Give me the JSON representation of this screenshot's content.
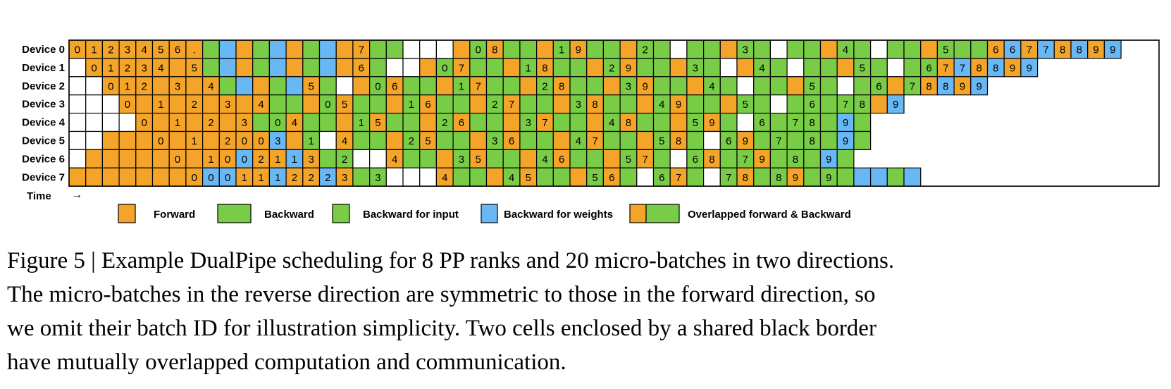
{
  "colors": {
    "forward": "#F5A42A",
    "backward": "#78CC46",
    "backward_input": "#78CC46",
    "backward_weights": "#69B8F6",
    "empty": "#FFFFFF"
  },
  "diagram": {
    "time_label": "Time",
    "time_arrow": "→",
    "rows": [
      {
        "label": "Device 0",
        "cells": "F0 F1 F2 F3 F4 F5 F6 F. B W F B W F B W F F7 B B . . . F B0 F8 B B F B1 F9 B B F B2 B . B B F B3 B . B B F B4 B . B B F B5 B B F6 W6 F7 W7 F8 W8 F9 W9"
      },
      {
        "label": "Device 1",
        "cells": ". F0 F1 F2 F3 F4 F F5 B W F B W F B W F F6 B . . F B0 F7 B B F B1 F8 B B F B2 F9 B B F B3 B . F B4 B . B B F B5 B . B B6 F7 W7 F8 W8 F9 W9"
      },
      {
        "label": "Device 2",
        "cells": ". . F0 F1 F2 F F3 F F4 B W F B W F5 B . F B0 F6 B B F B1 F7 B B F B2 F8 B B F B3 F9 B B F B4 B . B B F B5 B . B B6 F B7 F8 W8 F9 W9"
      },
      {
        "label": "Device 3",
        "cells": ". . . F0 F F1 F F2 F F3 F F4 B B F B0 F5 B B F B1 F6 B B F B2 F7 B B F B3 F8 B B F B4 F9 B B F B5 B . B B6 B B7 B8 F W9"
      },
      {
        "label": "Device 4",
        "cells": ". . . . F0 F F1 F F2 F F3 B B0 F4 B B F B1 F5 B B F B2 F6 B B F B3 F7 B B F B4 F8 B B F B5 F9 B . B6 B B7 B8 B W9 B"
      },
      {
        "label": "Device 5",
        "cells": ". . F F F F0 F F1 F F2 F0 F0 W3 F B1 . F4 B B F B2 F5 B B F B3 F6 B B F B4 F7 B B F B5 F8 B . B6 F9 B B7 B B8 B W9 B"
      },
      {
        "label": "Device 6",
        "cells": ". F F F F F F0 F F1 F0 W0 F2 F1 W1 F3 B B2 . . F4 B B F B3 F5 B B F B4 F6 B B F B5 F7 B . B6 F8 B B7 F9 B B8 B W9 B"
      },
      {
        "label": "Device 7",
        "cells": "F F F F F F F F0 W0 W0 F1 F1 W1 F2 F2 W2 F3 B B3 . . . F4 B B F B4 F5 B B F B5 F6 B . B6 F7 B . B7 F8 B B8 F9 B B9 B W W B W"
      }
    ]
  },
  "legend": [
    {
      "key": "forward",
      "label": "Forward"
    },
    {
      "key": "backward",
      "label": "Backward"
    },
    {
      "key": "backward_input",
      "label": "Backward for input"
    },
    {
      "key": "backward_weights",
      "label": "Backward for weights"
    },
    {
      "key": "overlapped",
      "label": "Overlapped forward & Backward"
    }
  ],
  "caption": {
    "line1": "Figure 5 | Example DualPipe scheduling for 8 PP ranks and 20 micro-batches in two directions.",
    "line2": "The micro-batches in the reverse direction are symmetric to those in the forward direction, so",
    "line3": "we omit their batch ID for illustration simplicity. Two cells enclosed by a shared black border",
    "line4": "have mutually overlapped computation and communication."
  }
}
